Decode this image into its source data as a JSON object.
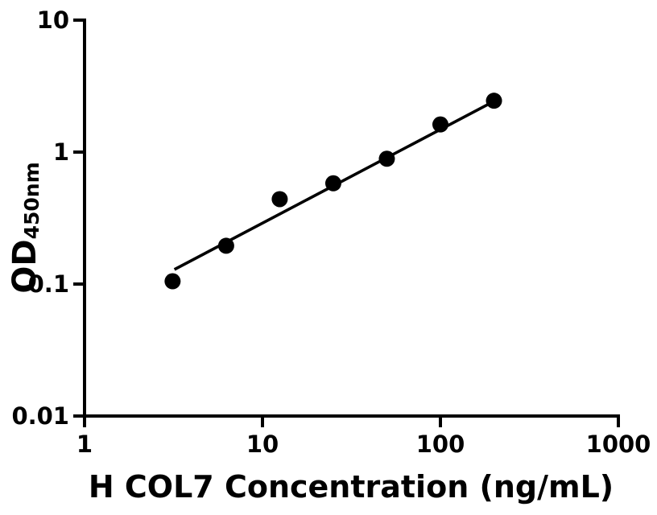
{
  "figure": {
    "background_color": "#ffffff",
    "ink_color": "#000000"
  },
  "chart_data": {
    "type": "scatter",
    "title": "",
    "xlabel": "H COL7 Concentration (ng/mL)",
    "ylabel_main": "OD",
    "ylabel_sub": "450nm",
    "x_scale": "log",
    "y_scale": "log",
    "xlim": [
      1,
      1000
    ],
    "ylim": [
      0.01,
      10
    ],
    "grid": false,
    "legend_position": "none",
    "x_ticks": [
      {
        "value": 1,
        "label": "1"
      },
      {
        "value": 10,
        "label": "10"
      },
      {
        "value": 100,
        "label": "100"
      },
      {
        "value": 1000,
        "label": "1000"
      }
    ],
    "y_ticks": [
      {
        "value": 0.01,
        "label": "0.01"
      },
      {
        "value": 0.1,
        "label": "0.1"
      },
      {
        "value": 1,
        "label": "1"
      },
      {
        "value": 10,
        "label": "10"
      }
    ],
    "series": [
      {
        "name": "fit-line",
        "kind": "line",
        "color": "#000000",
        "x": [
          3.2,
          205
        ],
        "y": [
          0.129,
          2.47
        ]
      },
      {
        "name": "standard-points",
        "kind": "scatter",
        "marker": "circle",
        "color": "#000000",
        "x": [
          3.125,
          6.25,
          12.5,
          25,
          50,
          100,
          200
        ],
        "y": [
          0.105,
          0.195,
          0.44,
          0.58,
          0.89,
          1.62,
          2.45
        ]
      }
    ]
  }
}
